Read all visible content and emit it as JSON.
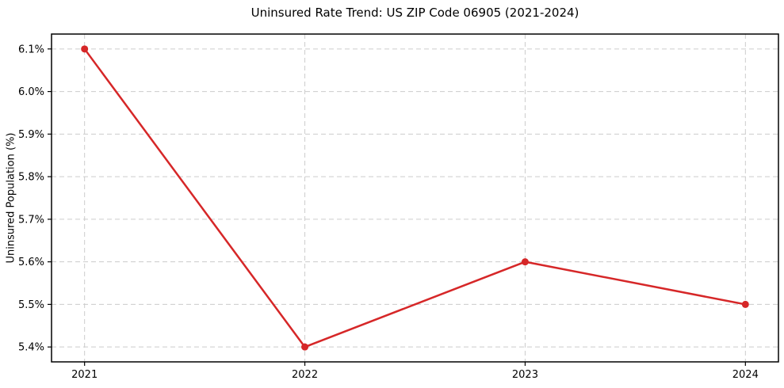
{
  "chart_data": {
    "type": "line",
    "title": "Uninsured Rate Trend: US ZIP Code 06905 (2021-2024)",
    "xlabel": "",
    "ylabel": "Uninsured Population (%)",
    "categories": [
      2021,
      2022,
      2023,
      2024
    ],
    "values": [
      6.1,
      5.4,
      5.6,
      5.5
    ],
    "xticks": [
      {
        "value": 2021,
        "label": "2021"
      },
      {
        "value": 2022,
        "label": "2022"
      },
      {
        "value": 2023,
        "label": "2023"
      },
      {
        "value": 2024,
        "label": "2024"
      }
    ],
    "yticks": [
      {
        "value": 5.4,
        "label": "5.4%"
      },
      {
        "value": 5.5,
        "label": "5.5%"
      },
      {
        "value": 5.6,
        "label": "5.6%"
      },
      {
        "value": 5.7,
        "label": "5.7%"
      },
      {
        "value": 5.8,
        "label": "5.8%"
      },
      {
        "value": 5.9,
        "label": "5.9%"
      },
      {
        "value": 6.0,
        "label": "6.0%"
      },
      {
        "value": 6.1,
        "label": "6.1%"
      }
    ],
    "xlim": [
      2020.85,
      2024.15
    ],
    "ylim": [
      5.365,
      6.135
    ],
    "grid": true,
    "grid_style": "dashed",
    "legend": "none",
    "colors": {
      "line": "#d62728",
      "marker": "#d62728",
      "grid": "#cccccc",
      "axis_border": "#000000",
      "text": "#000000",
      "background": "#ffffff"
    }
  }
}
